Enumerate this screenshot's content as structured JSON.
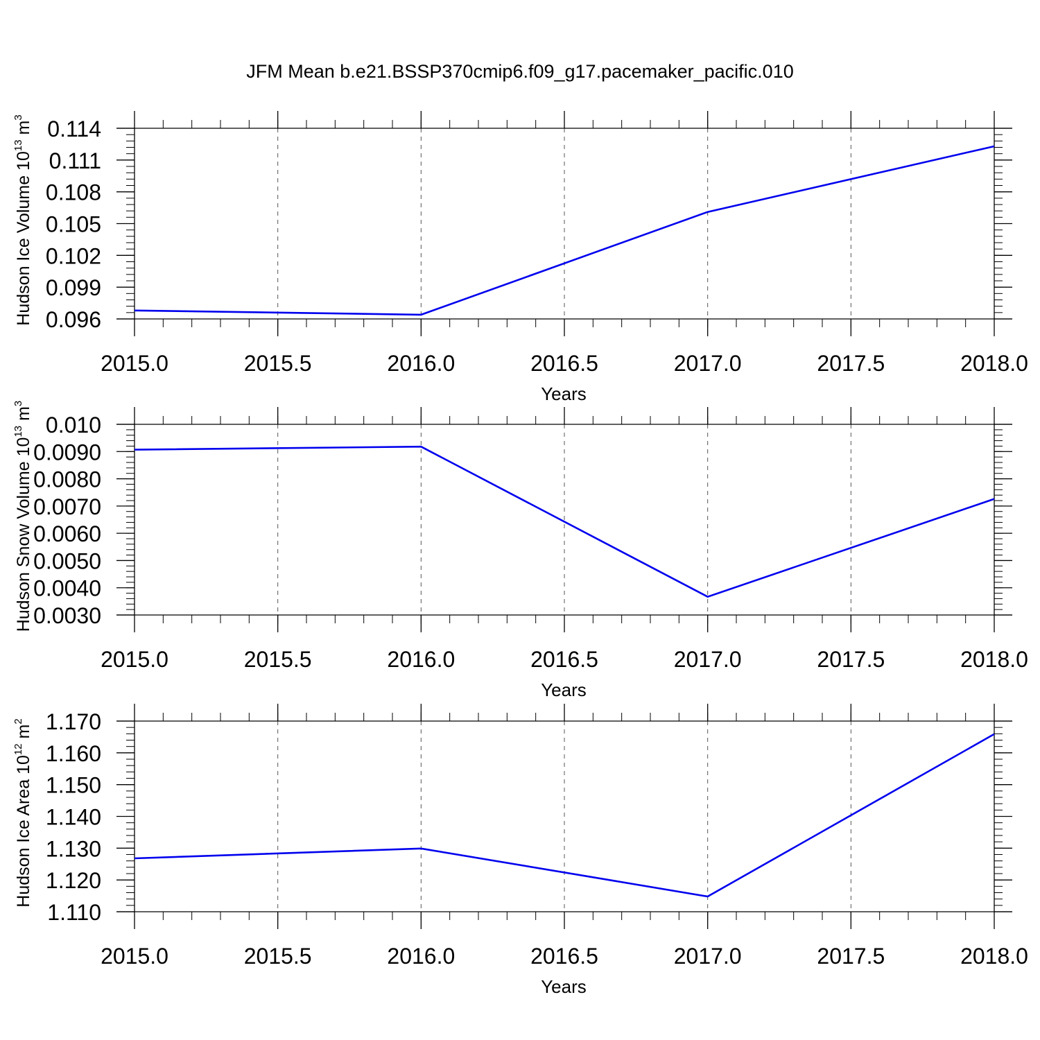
{
  "figure": {
    "title": "JFM Mean b.e21.BSSP370cmip6.f09_g17.pacemaker_pacific.010"
  },
  "chart_data": [
    {
      "type": "line",
      "ylabel": {
        "text": "Hudson Ice Volume 10",
        "sup": "13",
        "unit": " m",
        "unit_sup": "3"
      },
      "xlabel": "Years",
      "xlim": [
        2015.0,
        2018.0
      ],
      "ylim": [
        0.096,
        0.114
      ],
      "xticks": [
        "2015.0",
        "2015.5",
        "2016.0",
        "2016.5",
        "2017.0",
        "2017.5",
        "2018.0"
      ],
      "yticks": [
        "0.096",
        "0.099",
        "0.102",
        "0.105",
        "0.108",
        "0.111",
        "0.114"
      ],
      "grid": "vertical dashed",
      "series": [
        {
          "color": "#0000ee",
          "x": [
            2015,
            2016,
            2017,
            2018
          ],
          "y": [
            0.0968,
            0.0964,
            0.1061,
            0.1123
          ]
        }
      ]
    },
    {
      "type": "line",
      "ylabel": {
        "text": "Hudson Snow Volume 10",
        "sup": "13",
        "unit": " m",
        "unit_sup": "3"
      },
      "xlabel": "Years",
      "xlim": [
        2015.0,
        2018.0
      ],
      "ylim": [
        0.003,
        0.01
      ],
      "xticks": [
        "2015.0",
        "2015.5",
        "2016.0",
        "2016.5",
        "2017.0",
        "2017.5",
        "2018.0"
      ],
      "yticks": [
        "0.0030",
        "0.0040",
        "0.0050",
        "0.0060",
        "0.0070",
        "0.0080",
        "0.0090",
        "0.010"
      ],
      "grid": "vertical dashed",
      "series": [
        {
          "color": "#0000ee",
          "x": [
            2015,
            2016,
            2017,
            2018
          ],
          "y": [
            0.00907,
            0.00918,
            0.00367,
            0.00726
          ]
        }
      ]
    },
    {
      "type": "line",
      "ylabel": {
        "text": "Hudson Ice Area 10",
        "sup": "12",
        "unit": " m",
        "unit_sup": "2"
      },
      "xlabel": "Years",
      "xlim": [
        2015.0,
        2018.0
      ],
      "ylim": [
        1.11,
        1.17
      ],
      "xticks": [
        "2015.0",
        "2015.5",
        "2016.0",
        "2016.5",
        "2017.0",
        "2017.5",
        "2018.0"
      ],
      "yticks": [
        "1.110",
        "1.120",
        "1.130",
        "1.140",
        "1.150",
        "1.160",
        "1.170"
      ],
      "grid": "vertical dashed",
      "series": [
        {
          "color": "#0000ee",
          "x": [
            2015,
            2016,
            2017,
            2018
          ],
          "y": [
            1.1268,
            1.1299,
            1.1148,
            1.1659
          ]
        }
      ]
    }
  ]
}
